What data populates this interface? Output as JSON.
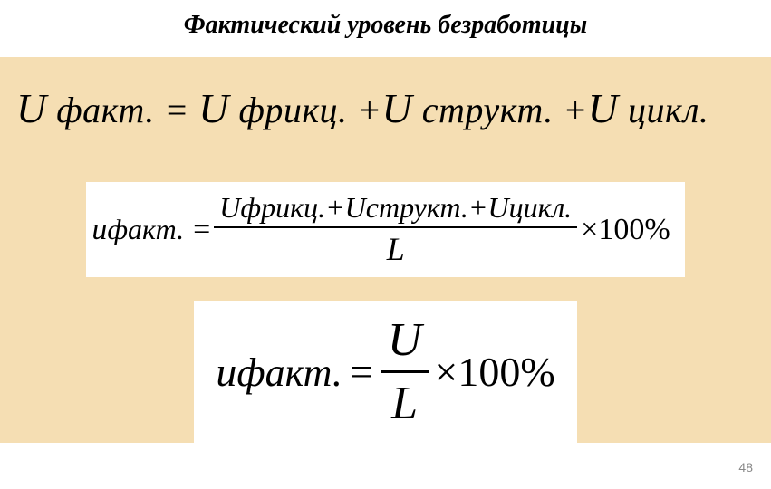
{
  "title": "Фактический уровень безработицы",
  "formula1": {
    "u1": "U",
    "lhs_sub": " факт. ",
    "eqs": "= ",
    "u2": "U",
    "t2": " фрикц. +",
    "u3": "U",
    "t3": " структ. +",
    "u4": "U",
    "t4": " цикл."
  },
  "formula2": {
    "lhs_u": "u",
    "lhs_sub": "факт.",
    "eq": "=",
    "num": "Uфрикц.+Uструкт.+Uцикл.",
    "den": "L",
    "tail": "×100%"
  },
  "formula3": {
    "lhs_u": "u",
    "lhs_sub": "факт.",
    "eq": "=",
    "num": "U",
    "den": "L",
    "tail": "×100%"
  },
  "pagenum": "48",
  "colors": {
    "band_bg": "#f5deb3",
    "text": "#000000",
    "page_bg": "#ffffff"
  }
}
